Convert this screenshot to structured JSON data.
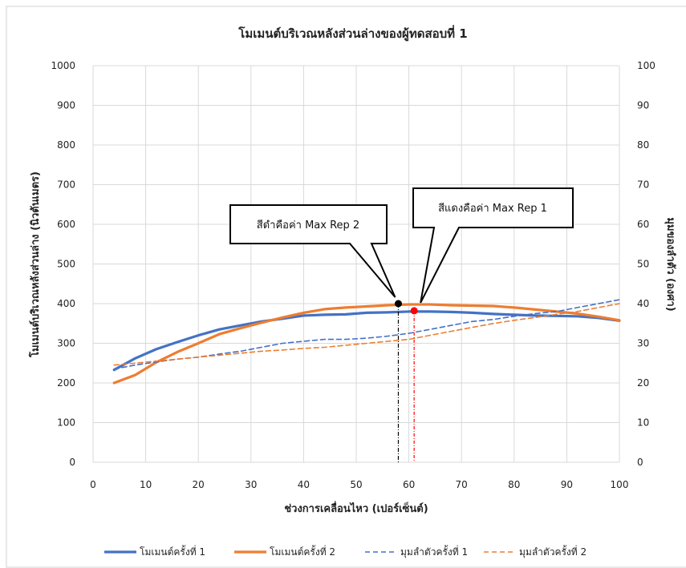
{
  "chart_data": {
    "type": "line",
    "title": "โมเมนต์บริเวณหลังส่วนล่างของผู้ทดสอบที่ 1",
    "xlabel": "ช่วงการเคลื่อนไหว (เปอร์เซ็นต์)",
    "ylabel": "โมเมนต์บริเวณหลังส่วนล่าง (นิวตันเมตร)",
    "y2label": "มุมของลำตัว (องศา)",
    "xlim": [
      0,
      100
    ],
    "ylim": [
      0,
      1000
    ],
    "y2lim": [
      0,
      100
    ],
    "xticks": [
      "0",
      "10",
      "20",
      "30",
      "40",
      "50",
      "60",
      "70",
      "80",
      "90",
      "100"
    ],
    "yticks": [
      "0",
      "100",
      "200",
      "300",
      "400",
      "500",
      "600",
      "700",
      "800",
      "900",
      "1000"
    ],
    "y2ticks": [
      "0",
      "10",
      "20",
      "30",
      "40",
      "50",
      "60",
      "70",
      "80",
      "90",
      "100"
    ],
    "grid": true,
    "legend_position": "bottom",
    "series": [
      {
        "name": "โมเมนต์ครั้งที่ 1",
        "axis": "left",
        "style": "solid",
        "color": "#4472C4",
        "x": [
          4,
          8,
          12,
          16,
          20,
          24,
          28,
          32,
          36,
          40,
          44,
          48,
          52,
          56,
          60,
          64,
          68,
          72,
          76,
          80,
          84,
          88,
          92,
          96,
          100
        ],
        "y": [
          233,
          262,
          285,
          303,
          320,
          335,
          345,
          355,
          362,
          370,
          372,
          373,
          377,
          378,
          380,
          380,
          379,
          377,
          374,
          372,
          370,
          369,
          368,
          364,
          357
        ]
      },
      {
        "name": "โมเมนต์ครั้งที่ 2",
        "axis": "left",
        "style": "solid",
        "color": "#ED7D31",
        "x": [
          4,
          8,
          12,
          16,
          20,
          24,
          28,
          32,
          36,
          40,
          44,
          48,
          52,
          56,
          60,
          64,
          68,
          72,
          76,
          80,
          84,
          88,
          92,
          96,
          100
        ],
        "y": [
          200,
          220,
          252,
          278,
          300,
          323,
          338,
          352,
          365,
          377,
          386,
          390,
          393,
          396,
          398,
          398,
          396,
          395,
          394,
          390,
          385,
          380,
          375,
          367,
          358
        ]
      },
      {
        "name": "มุมลำตัวครั้งที่ 1",
        "axis": "right",
        "style": "dashed",
        "color": "#4472C4",
        "x": [
          4,
          8,
          12,
          16,
          20,
          24,
          28,
          32,
          36,
          40,
          44,
          48,
          52,
          56,
          60,
          64,
          68,
          72,
          76,
          80,
          84,
          88,
          92,
          96,
          100
        ],
        "y": [
          23.5,
          24.5,
          25.3,
          26,
          26.5,
          27.3,
          28,
          29,
          30,
          30.5,
          31,
          31,
          31.3,
          31.8,
          32.5,
          33.5,
          34.5,
          35.5,
          36,
          36.8,
          37.5,
          38,
          39,
          40,
          41
        ]
      },
      {
        "name": "มุมลำตัวครั้งที่ 2",
        "axis": "right",
        "style": "dashed",
        "color": "#ED7D31",
        "x": [
          4,
          8,
          12,
          16,
          20,
          24,
          28,
          32,
          36,
          40,
          44,
          48,
          52,
          56,
          60,
          64,
          68,
          72,
          76,
          80,
          84,
          88,
          92,
          96,
          100
        ],
        "y": [
          24.5,
          25,
          25.5,
          26,
          26.5,
          27,
          27.5,
          28,
          28.3,
          28.7,
          29,
          29.5,
          30,
          30.5,
          31,
          32,
          33,
          34,
          35,
          35.8,
          36.5,
          37.3,
          38,
          39,
          40
        ]
      }
    ],
    "markers": [
      {
        "label": "Max Rep 2",
        "x": 58,
        "y": 400,
        "color": "#000000"
      },
      {
        "label": "Max Rep 1",
        "x": 61,
        "y": 382,
        "color": "#FF0000"
      }
    ],
    "annotations": [
      {
        "text": "สีดำคือค่า Max Rep 2",
        "anchor": "Max Rep 2"
      },
      {
        "text": "สีแดงคือค่า Max Rep 1",
        "anchor": "Max Rep 1"
      }
    ]
  }
}
